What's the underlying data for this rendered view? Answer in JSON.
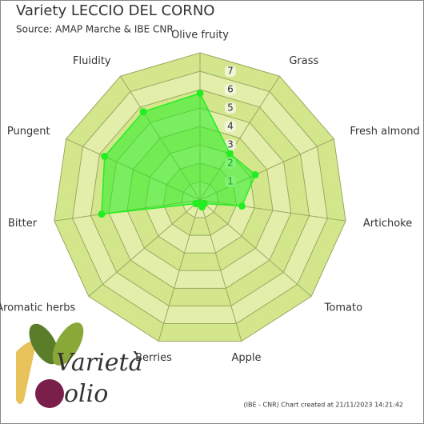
{
  "chart_data": {
    "type": "radar",
    "title": "Variety LECCIO DEL CORNO",
    "subtitle": "Source: AMAP Marche & IBE CNR",
    "credit": "(IBE - CNR) Chart created at 21/11/2023 14:21:42",
    "logo": [
      "Varietà",
      "olio"
    ],
    "categories": [
      "Olive fruity",
      "Grass",
      "Fresh almond",
      "Artichoke",
      "Tomato",
      "Apple",
      "Berries",
      "Aromatic herbs",
      "Bitter",
      "Pungent",
      "Fluidity"
    ],
    "series": [
      {
        "color": "#22ee22",
        "values": [
          5.8,
          3.0,
          3.3,
          2.3,
          0.3,
          0.4,
          0.2,
          0.3,
          5.4,
          5.7,
          5.7
        ]
      }
    ],
    "ylim": [
      0,
      8
    ],
    "yticks": [
      1,
      2,
      3,
      4,
      5,
      6,
      7
    ],
    "grid": true
  }
}
